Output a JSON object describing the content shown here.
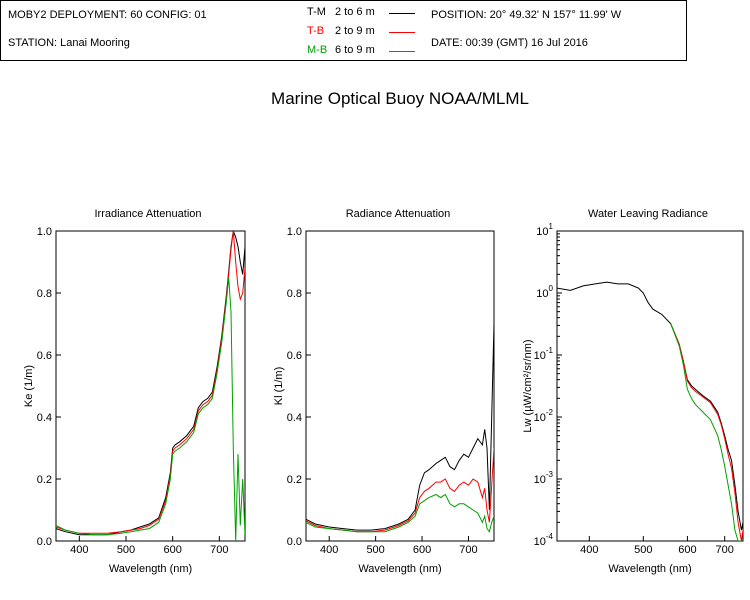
{
  "title": "Marine Optical Buoy NOAA/MLML",
  "info": {
    "deployment": "MOBY2 DEPLOYMENT: 60 CONFIG: 01",
    "station": "STATION: Lanai Mooring",
    "position": "POSITION: 20° 49.32' N   157° 11.99' W",
    "date": "DATE: 00:39 (GMT) 16 Jul 2016",
    "pairs": [
      {
        "label": "T-M",
        "range": "2 to 6  m",
        "color": "#000000"
      },
      {
        "label": "T-B",
        "range": "2 to 9  m",
        "color": "#ff0000"
      },
      {
        "label": "M-B",
        "range": "6 to 9  m",
        "color": "#00a000"
      }
    ]
  },
  "chart_data": [
    {
      "type": "line",
      "title": "Irradiance Attenuation",
      "xlabel": "Wavelength (nm)",
      "ylabel": "Ke  (1/m)",
      "xlim": [
        350,
        755
      ],
      "ylim": [
        0,
        1.0
      ],
      "xticks": [
        400,
        500,
        600,
        700
      ],
      "yticks": [
        0.0,
        0.2,
        0.4,
        0.6,
        0.8,
        1.0
      ],
      "ytick_labels": [
        "0.0",
        "0.2",
        "0.4",
        "0.6",
        "0.8",
        "1.0"
      ],
      "series": [
        {
          "name": "T-M",
          "color": "#000000",
          "x": [
            350,
            370,
            400,
            430,
            460,
            490,
            510,
            530,
            550,
            570,
            585,
            595,
            600,
            605,
            615,
            630,
            645,
            655,
            665,
            675,
            685,
            695,
            705,
            715,
            720,
            725,
            730,
            735,
            740,
            745,
            750,
            755
          ],
          "y": [
            0.04,
            0.03,
            0.02,
            0.02,
            0.02,
            0.03,
            0.035,
            0.045,
            0.055,
            0.075,
            0.14,
            0.22,
            0.3,
            0.31,
            0.32,
            0.34,
            0.37,
            0.43,
            0.45,
            0.46,
            0.48,
            0.56,
            0.66,
            0.79,
            0.87,
            0.95,
            1.0,
            0.98,
            0.95,
            0.9,
            0.86,
            0.95
          ]
        },
        {
          "name": "T-B",
          "color": "#ff0000",
          "x": [
            350,
            370,
            400,
            430,
            460,
            490,
            510,
            530,
            550,
            570,
            585,
            595,
            600,
            605,
            615,
            630,
            645,
            655,
            665,
            675,
            685,
            695,
            705,
            715,
            720,
            725,
            730,
            735,
            740,
            745,
            750,
            755
          ],
          "y": [
            0.045,
            0.035,
            0.025,
            0.025,
            0.025,
            0.03,
            0.035,
            0.04,
            0.05,
            0.07,
            0.13,
            0.21,
            0.29,
            0.3,
            0.31,
            0.33,
            0.36,
            0.42,
            0.44,
            0.45,
            0.47,
            0.55,
            0.65,
            0.78,
            0.86,
            0.94,
            1.0,
            0.9,
            0.82,
            0.78,
            0.8,
            0.88
          ]
        },
        {
          "name": "M-B",
          "color": "#00a000",
          "x": [
            350,
            370,
            400,
            430,
            460,
            490,
            510,
            530,
            550,
            570,
            585,
            595,
            600,
            605,
            615,
            630,
            645,
            655,
            665,
            675,
            685,
            695,
            705,
            715,
            720,
            725,
            730,
            735,
            740,
            745,
            750,
            755
          ],
          "y": [
            0.05,
            0.035,
            0.025,
            0.02,
            0.02,
            0.025,
            0.03,
            0.035,
            0.04,
            0.06,
            0.12,
            0.2,
            0.28,
            0.29,
            0.3,
            0.32,
            0.35,
            0.41,
            0.43,
            0.44,
            0.46,
            0.54,
            0.64,
            0.77,
            0.85,
            0.74,
            0.3,
            0.0,
            0.28,
            0.05,
            0.2,
            0.02
          ]
        }
      ]
    },
    {
      "type": "line",
      "title": "Radiance Attenuation",
      "xlabel": "Wavelength (nm)",
      "ylabel": "Kl  (1/m)",
      "xlim": [
        350,
        755
      ],
      "ylim": [
        0,
        1.0
      ],
      "xticks": [
        400,
        500,
        600,
        700
      ],
      "yticks": [
        0.0,
        0.2,
        0.4,
        0.6,
        0.8,
        1.0
      ],
      "ytick_labels": [
        "0.0",
        "0.2",
        "0.4",
        "0.6",
        "0.8",
        "1.0"
      ],
      "series": [
        {
          "name": "T-M",
          "color": "#000000",
          "x": [
            350,
            370,
            400,
            430,
            460,
            490,
            520,
            550,
            570,
            585,
            595,
            605,
            615,
            630,
            640,
            650,
            660,
            670,
            680,
            690,
            700,
            710,
            720,
            730,
            735,
            740,
            745,
            750,
            755
          ],
          "y": [
            0.07,
            0.055,
            0.045,
            0.04,
            0.035,
            0.035,
            0.04,
            0.055,
            0.07,
            0.1,
            0.18,
            0.22,
            0.23,
            0.25,
            0.26,
            0.27,
            0.24,
            0.23,
            0.26,
            0.28,
            0.27,
            0.3,
            0.33,
            0.31,
            0.36,
            0.3,
            0.1,
            0.4,
            0.7
          ]
        },
        {
          "name": "T-B",
          "color": "#ff0000",
          "x": [
            350,
            370,
            400,
            430,
            460,
            490,
            520,
            550,
            570,
            585,
            595,
            605,
            615,
            630,
            640,
            650,
            660,
            670,
            680,
            690,
            700,
            710,
            720,
            730,
            735,
            740,
            745,
            750,
            755
          ],
          "y": [
            0.065,
            0.05,
            0.04,
            0.035,
            0.03,
            0.03,
            0.035,
            0.05,
            0.065,
            0.09,
            0.14,
            0.16,
            0.17,
            0.19,
            0.19,
            0.2,
            0.17,
            0.16,
            0.18,
            0.19,
            0.18,
            0.2,
            0.19,
            0.14,
            0.17,
            0.1,
            0.06,
            0.18,
            0.3
          ]
        },
        {
          "name": "M-B",
          "color": "#00a000",
          "x": [
            350,
            370,
            400,
            430,
            460,
            490,
            520,
            550,
            570,
            585,
            595,
            605,
            615,
            630,
            640,
            650,
            660,
            670,
            680,
            690,
            700,
            710,
            720,
            730,
            735,
            740,
            745,
            750,
            755
          ],
          "y": [
            0.06,
            0.045,
            0.04,
            0.035,
            0.03,
            0.03,
            0.03,
            0.045,
            0.06,
            0.08,
            0.12,
            0.13,
            0.14,
            0.15,
            0.14,
            0.15,
            0.12,
            0.11,
            0.12,
            0.12,
            0.11,
            0.1,
            0.09,
            0.06,
            0.08,
            0.04,
            0.03,
            0.06,
            0.08
          ]
        }
      ]
    },
    {
      "type": "line",
      "title": "Water Leaving Radiance",
      "xlabel": "Wavelength (nm)",
      "ylabel": "Lw  (µW/cm²/sr/nm)",
      "xscale": "log",
      "xlim": [
        350,
        755
      ],
      "ylim": [
        0.0001,
        10
      ],
      "yscale": "log",
      "xticks": [
        400,
        500,
        600,
        700
      ],
      "yticks": [
        0.0001,
        0.001,
        0.01,
        0.1,
        1,
        10
      ],
      "ytick_labels": [
        [
          "10",
          "-4"
        ],
        [
          "10",
          "-3"
        ],
        [
          "10",
          "-2"
        ],
        [
          "10",
          "-1"
        ],
        [
          "10",
          "0"
        ],
        [
          "10",
          "1"
        ]
      ],
      "series": [
        {
          "name": "T-M",
          "color": "#000000",
          "x": [
            350,
            370,
            390,
            410,
            430,
            450,
            470,
            490,
            500,
            510,
            520,
            540,
            560,
            580,
            590,
            600,
            610,
            620,
            640,
            660,
            680,
            690,
            700,
            710,
            720,
            730,
            740,
            750,
            755
          ],
          "y": [
            1.2,
            1.1,
            1.3,
            1.4,
            1.5,
            1.4,
            1.4,
            1.2,
            1.0,
            0.7,
            0.55,
            0.45,
            0.32,
            0.15,
            0.08,
            0.04,
            0.032,
            0.028,
            0.022,
            0.018,
            0.012,
            0.008,
            0.005,
            0.003,
            0.002,
            0.0008,
            0.0003,
            0.00015,
            0.0002
          ]
        },
        {
          "name": "T-B",
          "color": "#ff0000",
          "x": [
            560,
            580,
            590,
            600,
            610,
            620,
            640,
            660,
            680,
            690,
            700,
            710,
            720,
            730,
            740,
            750,
            755
          ],
          "y": [
            0.32,
            0.15,
            0.08,
            0.038,
            0.03,
            0.026,
            0.021,
            0.017,
            0.011,
            0.0075,
            0.0045,
            0.0025,
            0.0015,
            0.0006,
            0.0002,
            0.0001,
            0.00015
          ]
        },
        {
          "name": "M-B",
          "color": "#00a000",
          "x": [
            560,
            580,
            590,
            600,
            610,
            620,
            640,
            660,
            680,
            690,
            700,
            710,
            720,
            730,
            740,
            750
          ],
          "y": [
            0.32,
            0.14,
            0.07,
            0.028,
            0.02,
            0.016,
            0.012,
            0.009,
            0.005,
            0.003,
            0.0016,
            0.0008,
            0.0004,
            0.00015,
            0.0001,
            0.0001
          ]
        }
      ]
    }
  ]
}
